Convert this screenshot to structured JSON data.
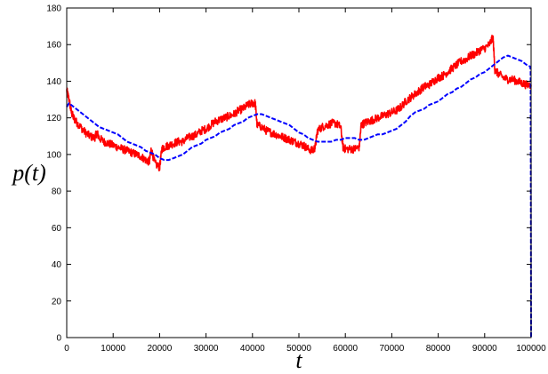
{
  "chart_data": {
    "type": "line",
    "title": "",
    "xlabel": "t",
    "ylabel": "p(t)",
    "xlim": [
      0,
      100000
    ],
    "ylim": [
      0,
      180
    ],
    "x_ticks": [
      0,
      10000,
      20000,
      30000,
      40000,
      50000,
      60000,
      70000,
      80000,
      90000,
      100000
    ],
    "y_ticks": [
      0,
      20,
      40,
      60,
      80,
      100,
      120,
      140,
      160,
      180
    ],
    "x_tick_labels": [
      "0",
      "10000",
      "20000",
      "30000",
      "40000",
      "50000",
      "60000",
      "70000",
      "80000",
      "90000",
      "100000"
    ],
    "y_tick_labels": [
      "0",
      "20",
      "40",
      "60",
      "80",
      "100",
      "120",
      "140",
      "160",
      "180"
    ],
    "grid": false,
    "series": [
      {
        "color": "#ff0000",
        "style": "solid-noisy",
        "x": [
          0,
          500,
          1000,
          1500,
          2000,
          3000,
          4000,
          5000,
          6000,
          6500,
          7000,
          8000,
          9000,
          10000,
          11000,
          12000,
          13000,
          14000,
          15000,
          16000,
          17000,
          17800,
          18200,
          19000,
          20000,
          20500,
          21000,
          22000,
          23000,
          24000,
          25000,
          26000,
          27000,
          28000,
          29000,
          30000,
          31000,
          32000,
          33000,
          34000,
          35000,
          36000,
          37000,
          38000,
          39000,
          40000,
          40600,
          41000,
          42000,
          43000,
          44000,
          45000,
          46000,
          47000,
          48000,
          49000,
          50000,
          51000,
          52000,
          53000,
          53500,
          54000,
          55000,
          56000,
          57000,
          58000,
          59000,
          59500,
          60000,
          61000,
          62000,
          63000,
          63400,
          64000,
          65000,
          66000,
          67000,
          68000,
          69000,
          70000,
          71000,
          72000,
          73000,
          74000,
          75000,
          76000,
          77000,
          78000,
          79000,
          80000,
          81000,
          82000,
          83000,
          84000,
          85000,
          86000,
          87000,
          88000,
          89000,
          90000,
          91000,
          91800,
          92200,
          93000,
          94000,
          95000,
          96000,
          97000,
          98000,
          99000,
          100000
        ],
        "y": [
          135,
          130,
          123,
          120,
          118,
          115,
          112,
          110,
          109,
          112,
          109,
          107,
          106,
          105,
          104,
          103,
          102,
          101,
          100,
          99,
          97,
          96,
          103,
          95,
          93,
          103,
          104,
          105,
          106,
          107,
          107,
          109,
          110,
          111,
          113,
          114,
          116,
          118,
          119,
          120,
          121,
          122,
          124,
          125,
          127,
          128,
          128,
          116,
          115,
          113,
          112,
          111,
          110,
          109,
          108,
          107,
          106,
          105,
          103,
          102,
          104,
          113,
          115,
          116,
          117,
          117,
          115,
          104,
          103,
          103,
          103,
          104,
          116,
          117,
          118,
          119,
          120,
          121,
          122,
          123,
          124,
          126,
          129,
          131,
          133,
          135,
          137,
          138,
          140,
          142,
          143,
          145,
          147,
          149,
          151,
          152,
          154,
          155,
          157,
          158,
          160,
          164,
          146,
          144,
          142,
          141,
          141,
          140,
          139,
          138,
          138
        ]
      },
      {
        "color": "#0000ff",
        "style": "dashed",
        "x": [
          0,
          500,
          1000,
          2000,
          3000,
          4000,
          5000,
          6000,
          7000,
          8000,
          9000,
          10000,
          11000,
          12000,
          13000,
          14000,
          15000,
          16000,
          17000,
          18000,
          19000,
          20000,
          21000,
          22000,
          23000,
          24000,
          25000,
          26000,
          27000,
          28000,
          29000,
          30000,
          31000,
          32000,
          33000,
          34000,
          35000,
          36000,
          37000,
          38000,
          39000,
          40000,
          41000,
          42000,
          43000,
          44000,
          45000,
          46000,
          47000,
          48000,
          49000,
          50000,
          51000,
          52000,
          53000,
          54000,
          55000,
          56000,
          57000,
          58000,
          59000,
          60000,
          61000,
          62000,
          63000,
          64000,
          65000,
          66000,
          67000,
          68000,
          69000,
          70000,
          71000,
          72000,
          73000,
          74000,
          75000,
          76000,
          77000,
          78000,
          79000,
          80000,
          81000,
          82000,
          83000,
          84000,
          85000,
          86000,
          87000,
          88000,
          89000,
          90000,
          91000,
          92000,
          93000,
          94000,
          95000,
          96000,
          97000,
          98000,
          99000,
          99800,
          99900,
          100000
        ],
        "y": [
          126,
          128,
          127,
          125,
          123,
          121,
          119,
          117,
          115,
          114,
          113,
          112,
          111,
          109,
          107,
          106,
          105,
          104,
          102,
          101,
          100,
          98,
          97,
          97,
          98,
          99,
          100,
          102,
          104,
          105,
          106,
          108,
          109,
          110,
          112,
          113,
          114,
          116,
          117,
          118,
          120,
          121,
          122,
          122,
          121,
          120,
          119,
          118,
          117,
          116,
          114,
          112,
          111,
          109,
          108,
          107,
          107,
          107,
          107,
          108,
          108,
          109,
          109,
          109,
          108,
          108,
          109,
          110,
          111,
          111,
          112,
          113,
          114,
          116,
          118,
          121,
          123,
          124,
          125,
          127,
          128,
          129,
          131,
          133,
          134,
          136,
          137,
          139,
          141,
          142,
          144,
          145,
          147,
          149,
          151,
          153,
          154,
          153,
          152,
          151,
          149,
          148,
          146,
          0
        ]
      }
    ]
  }
}
